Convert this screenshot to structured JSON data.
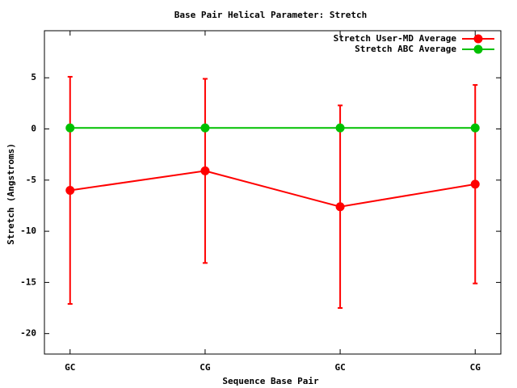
{
  "chart_data": {
    "type": "line",
    "title": "Base Pair Helical Parameter: Stretch",
    "x_label": "Sequence Base Pair",
    "y_label": "Stretch (Angstroms)",
    "categories": [
      "GC",
      "CG",
      "GC",
      "CG"
    ],
    "series": [
      {
        "name": "Stretch User-MD Average",
        "color": "#ff0000",
        "values": [
          -6.0,
          -4.1,
          -7.6,
          -5.4
        ],
        "errors": [
          11.1,
          9.0,
          9.9,
          9.7
        ]
      },
      {
        "name": "Stretch ABC Average",
        "color": "#00c000",
        "values": [
          0.1,
          0.1,
          0.1,
          0.1
        ]
      }
    ],
    "ylim": [
      -22,
      9.6
    ],
    "yticks": [
      -20,
      -15,
      -10,
      -5,
      0,
      5
    ],
    "legend": "top-right"
  }
}
